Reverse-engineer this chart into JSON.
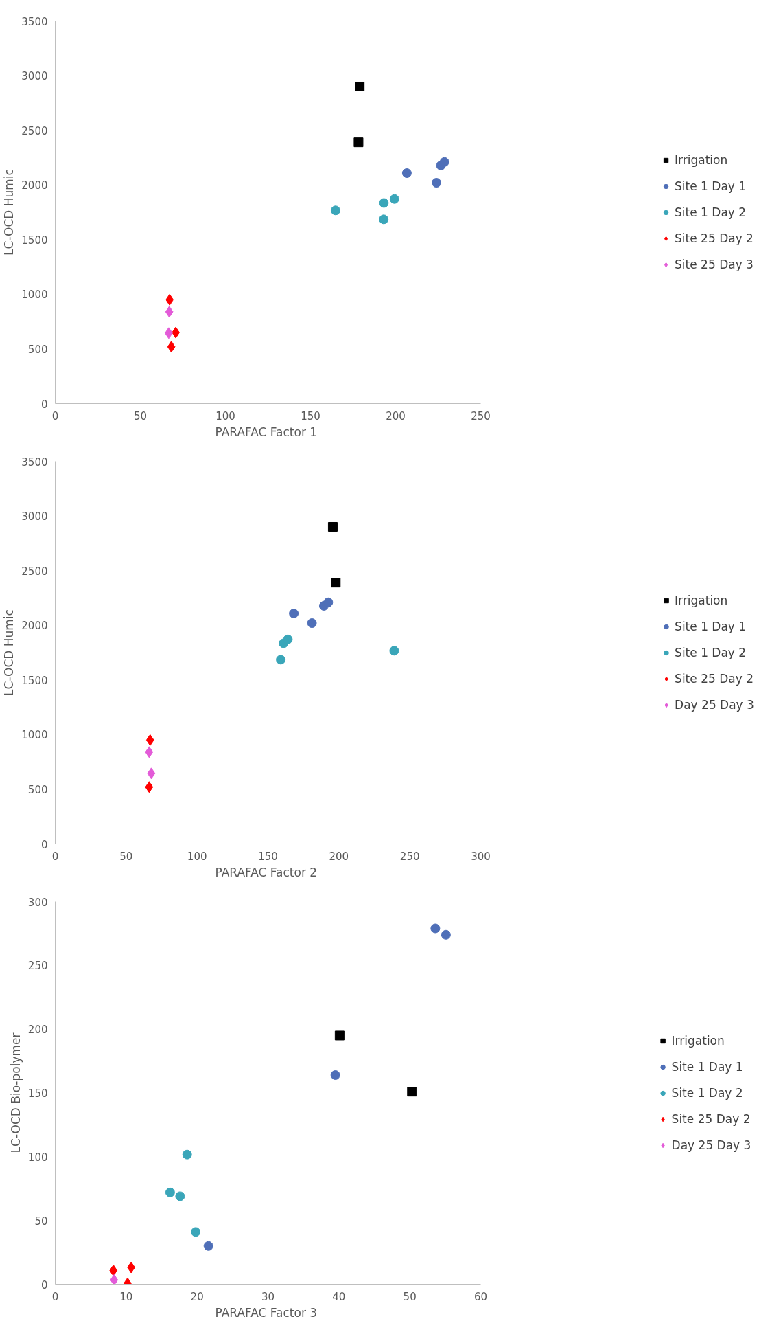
{
  "chart_data": [
    {
      "type": "scatter",
      "xlabel": "PARAFAC  Factor 1",
      "ylabel": "LC-OCD Humic",
      "xlim": [
        0,
        250
      ],
      "ylim": [
        0,
        3500
      ],
      "xticks": [
        0,
        50,
        100,
        150,
        200,
        250
      ],
      "yticks": [
        0,
        500,
        1000,
        1500,
        2000,
        2500,
        3000,
        3500
      ],
      "grid": false,
      "legend": "right",
      "series": [
        {
          "name": "Irrigation",
          "color": "#000000",
          "marker": "square",
          "x": [
            178.9,
            178.2
          ],
          "values": [
            2900,
            2390
          ]
        },
        {
          "name": "Site 1 Day 1",
          "color": "#4f6fb8",
          "marker": "circle",
          "x": [
            206.6,
            224,
            226.6,
            228.7
          ],
          "values": [
            2108,
            2020,
            2178,
            2210
          ]
        },
        {
          "name": "Site 1 Day 2",
          "color": "#3aa6b9",
          "marker": "circle",
          "x": [
            164.7,
            193.1,
            199.3,
            null,
            193
          ],
          "values": [
            1767,
            1835,
            1871,
            null,
            1685
          ]
        },
        {
          "name": "Site 25 Day 2",
          "color": "#ff0000",
          "marker": "diamond",
          "x": [
            67.2,
            70.8,
            68.2
          ],
          "values": [
            950,
            650,
            520
          ]
        },
        {
          "name": "Site 25 Day 3",
          "color": "#e35bd8",
          "marker": "diamond",
          "x": [
            67,
            66.7
          ],
          "values": [
            840,
            645
          ]
        }
      ]
    },
    {
      "type": "scatter",
      "xlabel": "PARAFAC  Factor 2",
      "ylabel": "LC-OCD Humic",
      "xlim": [
        0,
        300
      ],
      "ylim": [
        0,
        3500
      ],
      "xticks": [
        0,
        50,
        100,
        150,
        200,
        250,
        300
      ],
      "yticks": [
        0,
        500,
        1000,
        1500,
        2000,
        2500,
        3000,
        3500
      ],
      "grid": false,
      "legend": "right",
      "series": [
        {
          "name": "Irrigation",
          "color": "#000000",
          "marker": "square",
          "x": [
            195.7,
            197.8
          ],
          "values": [
            2900,
            2390
          ]
        },
        {
          "name": "Site 1 Day 1",
          "color": "#4f6fb8",
          "marker": "circle",
          "x": [
            168.2,
            181,
            189.4,
            192.5
          ],
          "values": [
            2108,
            2020,
            2178,
            2210
          ]
        },
        {
          "name": "Site 1 Day 2",
          "color": "#3aa6b9",
          "marker": "circle",
          "x": [
            239,
            161,
            164,
            null,
            159
          ],
          "values": [
            1767,
            1835,
            1871,
            null,
            1685
          ]
        },
        {
          "name": "Site 25 Day 2",
          "color": "#ff0000",
          "marker": "diamond",
          "x": [
            66.9,
            null,
            66.2
          ],
          "values": [
            950,
            null,
            520
          ]
        },
        {
          "name": "Day 25 Day 3",
          "color": "#e35bd8",
          "marker": "diamond",
          "x": [
            66.2,
            67.7
          ],
          "values": [
            840,
            645
          ]
        }
      ]
    },
    {
      "type": "scatter",
      "xlabel": "PARAFAC  Factor 3",
      "ylabel": "LC-OCD Bio-polymer",
      "xlim": [
        0,
        60
      ],
      "ylim": [
        0,
        300
      ],
      "xticks": [
        0,
        10,
        20,
        30,
        40,
        50,
        60
      ],
      "yticks": [
        0,
        50,
        100,
        150,
        200,
        250,
        300
      ],
      "grid": false,
      "legend": "right",
      "series": [
        {
          "name": "Irrigation",
          "color": "#000000",
          "marker": "square",
          "x": [
            40.1,
            50.3
          ],
          "values": [
            195,
            151
          ]
        },
        {
          "name": "Site 1 Day 1",
          "color": "#4f6fb8",
          "marker": "circle",
          "x": [
            39.5,
            53.6,
            55.1,
            21.6
          ],
          "values": [
            164,
            279,
            274,
            30
          ]
        },
        {
          "name": "Site 1 Day 2",
          "color": "#3aa6b9",
          "marker": "circle",
          "x": [
            18.6,
            16.2,
            17.6,
            19.8
          ],
          "values": [
            101.7,
            72,
            69,
            41
          ]
        },
        {
          "name": "Site 25 Day 2",
          "color": "#ff0000",
          "marker": "diamond",
          "x": [
            8.2,
            10.7,
            10.2
          ],
          "values": [
            10.8,
            13.2,
            0.7
          ]
        },
        {
          "name": "Day 25 Day 3",
          "color": "#e35bd8",
          "marker": "diamond",
          "x": [
            8.3
          ],
          "values": [
            3.4
          ]
        }
      ]
    }
  ]
}
